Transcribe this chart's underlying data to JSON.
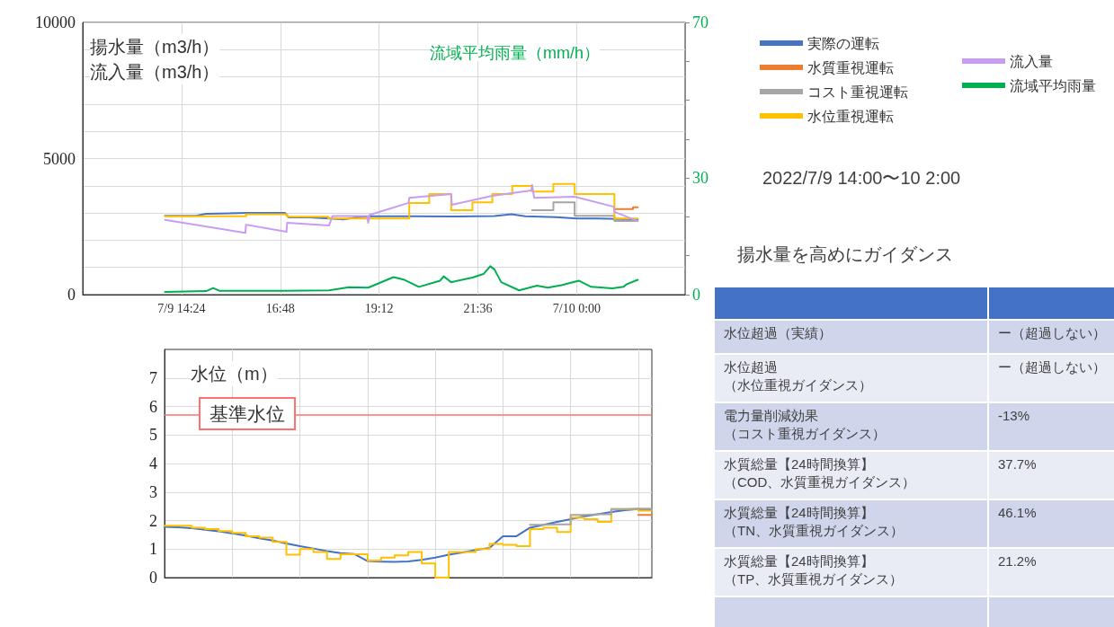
{
  "chart_data": [
    {
      "type": "line",
      "ylabel": "揚水量（m3/h）",
      "annotations": [
        "流入量（m3/h）"
      ],
      "y2label": "流域平均雨量（mm/h）",
      "xlim": [
        "2022-07-09T12:00",
        "2022-07-10T02:38"
      ],
      "xticks": [
        {
          "value": "2022-07-09T14:24",
          "label": "7/9 14:24"
        },
        {
          "value": "2022-07-09T16:48",
          "label": "16:48"
        },
        {
          "value": "2022-07-09T19:12",
          "label": "19:12"
        },
        {
          "value": "2022-07-09T21:36",
          "label": "21:36"
        },
        {
          "value": "2022-07-10T00:00",
          "label": "7/10 0:00"
        }
      ],
      "ylim": [
        0,
        10000
      ],
      "yticks": [
        0,
        {
          "value": 1000,
          "label": null
        },
        {
          "value": 2000,
          "label": null
        },
        {
          "value": 3000,
          "label": null
        },
        {
          "value": 4000,
          "label": null
        },
        5000,
        {
          "value": 6000,
          "label": null
        },
        {
          "value": 7000,
          "label": null
        },
        {
          "value": 8000,
          "label": null
        },
        {
          "value": 9000,
          "label": null
        },
        10000
      ],
      "y2lim": [
        0,
        70
      ],
      "y2ticks": [
        0,
        {
          "value": 10,
          "label": null
        },
        {
          "value": 20,
          "label": null
        },
        30,
        {
          "value": 40,
          "label": null
        },
        {
          "value": 50,
          "label": null
        },
        {
          "value": 60,
          "label": null
        },
        70
      ],
      "grid": true,
      "legend": "right",
      "series": [
        {
          "name": "実際の運転",
          "color": "#4472c4",
          "x": [
            "2022-07-09T14:00",
            "2022-07-09T14:45",
            "2022-07-09T15:00",
            "2022-07-09T16:00",
            "2022-07-09T16:55",
            "2022-07-09T17:00",
            "2022-07-09T17:30",
            "2022-07-09T18:00",
            "2022-07-09T18:20",
            "2022-07-09T18:40",
            "2022-07-09T19:00",
            "2022-07-09T20:00",
            "2022-07-09T21:00",
            "2022-07-09T22:00",
            "2022-07-09T22:25",
            "2022-07-09T22:45",
            "2022-07-09T23:30",
            "2022-07-10T00:00",
            "2022-07-10T00:30",
            "2022-07-10T01:00",
            "2022-07-10T01:29"
          ],
          "values": [
            2900,
            2900,
            2970,
            3000,
            3000,
            2840,
            2840,
            2800,
            2760,
            2850,
            2880,
            2880,
            2870,
            2890,
            2950,
            2880,
            2850,
            2800,
            2800,
            2780,
            2770
          ]
        },
        {
          "name": "水質重視運転",
          "type": "step",
          "color": "#ed7d31",
          "x": [
            "2022-07-10T00:55",
            "2022-07-10T01:22",
            "2022-07-10T01:29"
          ],
          "values": [
            3140,
            3210,
            3210
          ]
        },
        {
          "name": "コスト重視運転",
          "type": "step",
          "color": "#a5a5a5",
          "x": [
            "2022-07-09T22:55",
            "2022-07-09T23:26",
            "2022-07-09T23:57",
            "2022-07-10T00:55",
            "2022-07-10T01:29"
          ],
          "values": [
            3100,
            3390,
            2900,
            2710,
            2710
          ]
        },
        {
          "name": "水位重視運転",
          "type": "step",
          "color": "#ffc000",
          "x": [
            "2022-07-09T14:00",
            "2022-07-09T15:58",
            "2022-07-09T16:58",
            "2022-07-09T17:58",
            "2022-07-09T19:56",
            "2022-07-09T20:25",
            "2022-07-09T20:57",
            "2022-07-09T21:28",
            "2022-07-09T21:57",
            "2022-07-09T22:26",
            "2022-07-09T22:55",
            "2022-07-09T23:26",
            "2022-07-09T23:57",
            "2022-07-10T00:55",
            "2022-07-10T01:29"
          ],
          "values": [
            2880,
            2950,
            2860,
            2800,
            3370,
            3700,
            3100,
            3390,
            3700,
            3990,
            3790,
            4070,
            3700,
            2800,
            2800
          ]
        },
        {
          "name": "流入量",
          "color": "#c89cf0",
          "x": [
            "2022-07-09T14:00",
            "2022-07-09T15:57",
            "2022-07-09T15:58",
            "2022-07-09T16:57",
            "2022-07-09T16:58",
            "2022-07-09T17:59",
            "2022-07-09T18:04",
            "2022-07-09T18:55",
            "2022-07-09T18:56",
            "2022-07-09T18:58",
            "2022-07-09T19:55",
            "2022-07-09T19:56",
            "2022-07-09T20:57",
            "2022-07-09T20:58",
            "2022-07-09T21:57",
            "2022-07-09T22:54",
            "2022-07-09T22:55",
            "2022-07-09T22:58",
            "2022-07-09T23:57",
            "2022-07-10T00:54",
            "2022-07-10T00:55",
            "2022-07-10T01:29"
          ],
          "values": [
            2750,
            2270,
            2570,
            2310,
            2640,
            2540,
            2890,
            2890,
            2640,
            2930,
            3370,
            3560,
            3700,
            3300,
            3630,
            3830,
            4030,
            3560,
            3600,
            3230,
            3040,
            2700
          ]
        },
        {
          "name": "流域平均雨量",
          "color": "#00b050",
          "axis": "y2",
          "x": [
            "2022-07-09T14:00",
            "2022-07-09T15:00",
            "2022-07-09T15:10",
            "2022-07-09T15:19",
            "2022-07-09T16:51",
            "2022-07-09T17:59",
            "2022-07-09T18:28",
            "2022-07-09T18:56",
            "2022-07-09T19:33",
            "2022-07-09T19:49",
            "2022-07-09T20:10",
            "2022-07-09T20:41",
            "2022-07-09T20:46",
            "2022-07-09T20:57",
            "2022-07-09T21:28",
            "2022-07-09T21:44",
            "2022-07-09T21:54",
            "2022-07-09T22:00",
            "2022-07-09T22:10",
            "2022-07-09T22:36",
            "2022-07-09T23:02",
            "2022-07-09T23:18",
            "2022-07-09T23:39",
            "2022-07-10T00:03",
            "2022-07-10T00:21",
            "2022-07-10T00:52",
            "2022-07-10T01:08",
            "2022-07-10T01:13",
            "2022-07-10T01:29"
          ],
          "values": [
            0.7,
            0.9,
            1.7,
            1.0,
            1.0,
            1.1,
            1.9,
            1.8,
            4.5,
            3.8,
            2.0,
            3.6,
            4.7,
            3.2,
            4.4,
            5.3,
            7.3,
            6.5,
            3.2,
            1.1,
            2.3,
            1.8,
            2.5,
            3.6,
            2.0,
            1.6,
            2.0,
            2.7,
            3.8
          ]
        }
      ]
    },
    {
      "type": "line",
      "ylabel": "水位（m）",
      "tick_labels": "y",
      "categories": [
        null,
        null,
        null,
        null,
        null,
        null,
        null,
        null,
        null,
        null,
        null,
        null,
        null,
        null,
        null,
        null,
        null,
        null,
        null,
        null,
        null,
        null,
        null,
        null,
        null,
        null,
        null,
        null,
        null,
        null,
        null,
        null,
        null,
        null,
        null,
        null,
        null
      ],
      "ylim": [
        0,
        8
      ],
      "yticks": [
        0,
        1,
        2,
        3,
        4,
        5,
        6,
        7
      ],
      "grid": true,
      "ref_lines": [
        {
          "axis": "y",
          "value": 5.7,
          "label": "基準水位",
          "color": "#ff7070"
        }
      ],
      "series": [
        {
          "color": "#4472c4",
          "values": [
            1.78,
            1.76,
            1.73,
            1.68,
            1.62,
            1.55,
            1.47,
            1.38,
            1.3,
            1.2,
            1.1,
            1.02,
            0.93,
            0.86,
            0.83,
            0.58,
            0.56,
            0.55,
            0.57,
            0.62,
            0.7,
            0.8,
            0.88,
            0.97,
            1.04,
            1.45,
            1.45,
            1.75,
            1.85,
            1.95,
            2.05,
            2.15,
            2.22,
            2.3,
            2.36,
            2.4,
            2.38
          ]
        },
        {
          "type": "step",
          "color": "#ffc000",
          "values": [
            1.82,
            1.82,
            1.75,
            1.7,
            1.63,
            1.57,
            1.45,
            1.4,
            1.25,
            0.8,
            1.0,
            0.9,
            0.65,
            0.82,
            0.82,
            0.6,
            0.7,
            0.78,
            0.9,
            0.5,
            0,
            0.9,
            0.9,
            1.0,
            1.18,
            1.15,
            1.1,
            1.7,
            1.75,
            1.6,
            2.1,
            2.05,
            1.95,
            2.4,
            2.4,
            2.35,
            2.35
          ]
        },
        {
          "type": "step",
          "color": "#a5a5a5",
          "values": [
            null,
            null,
            null,
            null,
            null,
            null,
            null,
            null,
            null,
            null,
            null,
            null,
            null,
            null,
            null,
            null,
            null,
            null,
            null,
            null,
            null,
            null,
            null,
            null,
            null,
            null,
            null,
            1.85,
            1.87,
            1.87,
            2.2,
            2.22,
            2.22,
            2.4,
            2.42,
            2.42,
            2.38
          ]
        },
        {
          "type": "step",
          "color": "#ed7d31",
          "values": [
            null,
            null,
            null,
            null,
            null,
            null,
            null,
            null,
            null,
            null,
            null,
            null,
            null,
            null,
            null,
            null,
            null,
            null,
            null,
            null,
            null,
            null,
            null,
            null,
            null,
            null,
            null,
            null,
            null,
            null,
            null,
            null,
            null,
            null,
            null,
            2.2,
            2.2
          ]
        }
      ]
    },
    {
      "type": "other",
      "annotations": [
        "2022/7/9 14:00〜10 2:00",
        "揚水量を高めにガイダンス"
      ],
      "categories": [
        "水位超過（実績）",
        "水位超過（水位重視ガイダンス）",
        "電力量削減効果（コスト重視ガイダンス）",
        "水質総量【24時間換算】（COD、水質重視ガイダンス）",
        "水質総量【24時間換算】（TN、水質重視ガイダンス）",
        "水質総量【24時間換算】（TP、水質重視ガイダンス）"
      ],
      "value_labels": [
        "ー（超過しない）",
        "ー（超過しない）",
        "-13%",
        "37.7%",
        "46.1%",
        "21.2%"
      ]
    }
  ]
}
